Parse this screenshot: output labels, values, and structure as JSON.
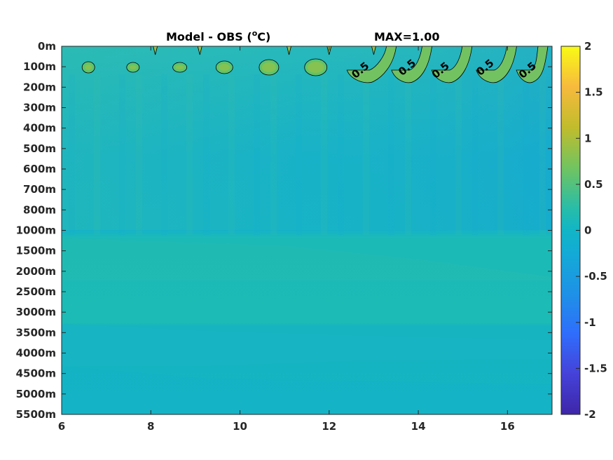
{
  "chart_data": {
    "type": "heatmap",
    "title": "Model - OBS (",
    "title_degree": "o",
    "title_unit": "C)",
    "max_label": "MAX=1.00",
    "x_ticks": [
      "6",
      "8",
      "10",
      "12",
      "14",
      "16"
    ],
    "x_tick_values": [
      6,
      8,
      10,
      12,
      14,
      16
    ],
    "xlim": [
      6,
      17
    ],
    "y_ticks": [
      "0m",
      "100m",
      "200m",
      "300m",
      "400m",
      "500m",
      "600m",
      "700m",
      "800m",
      "1000m",
      "1500m",
      "2000m",
      "2500m",
      "3000m",
      "3500m",
      "4000m",
      "4500m",
      "5000m",
      "5500m"
    ],
    "colorbar": {
      "range": [
        -2,
        2
      ],
      "ticks": [
        "2",
        "1.5",
        "1",
        "0.5",
        "0",
        "-0.5",
        "-1",
        "-1.5",
        "-2"
      ],
      "tick_values": [
        2,
        1.5,
        1,
        0.5,
        0,
        -0.5,
        -1,
        -1.5,
        -2
      ],
      "colormap": [
        "#3e26a8",
        "#4a42d5",
        "#2c7bfa",
        "#1ca7e0",
        "#13b5c7",
        "#34c09a",
        "#86c44e",
        "#cdba27",
        "#fbc23c",
        "#f9fb15"
      ]
    },
    "contour_level": 0.5,
    "contour_labels": [
      {
        "text": "0.5",
        "x": 12.75
      },
      {
        "text": "0.5",
        "x": 13.8
      },
      {
        "text": "0.5",
        "x": 14.55
      },
      {
        "text": "0.5",
        "x": 15.55
      },
      {
        "text": "0.5",
        "x": 16.5
      }
    ]
  }
}
